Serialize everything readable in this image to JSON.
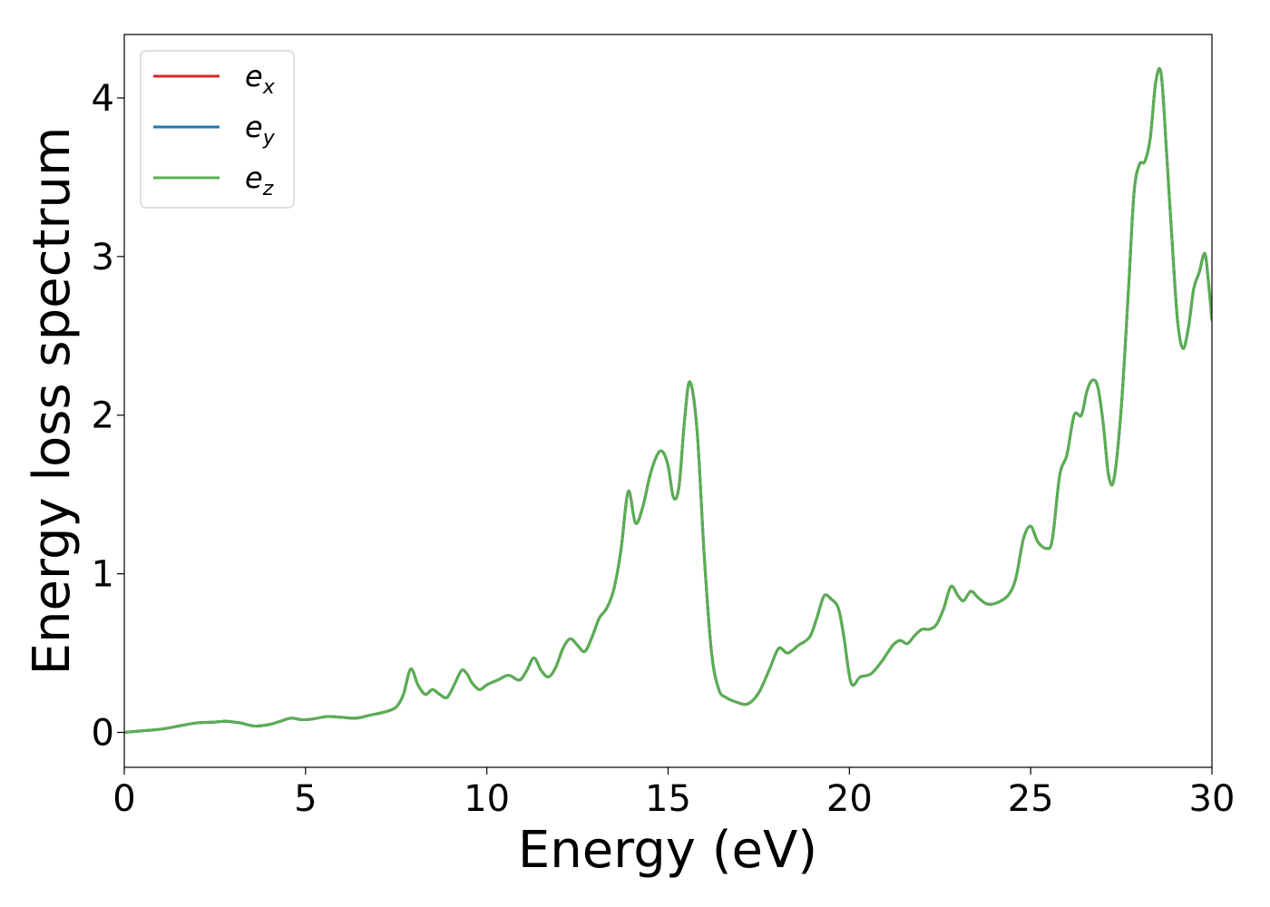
{
  "chart_data": {
    "type": "line",
    "xlabel": "Energy (eV)",
    "ylabel": "Energy loss spectrum",
    "xlim": [
      0,
      30
    ],
    "ylim": [
      -0.22,
      4.4
    ],
    "xticks": [
      0,
      5,
      10,
      15,
      20,
      25,
      30
    ],
    "yticks": [
      0,
      1,
      2,
      3,
      4
    ],
    "grid": false,
    "legend_position": "top-left",
    "colors": {
      "e_x": "#d62728",
      "e_y": "#1f77b4",
      "e_z": "#5aaf50"
    },
    "legend": [
      {
        "base": "e",
        "sub": "x"
      },
      {
        "base": "e",
        "sub": "y"
      },
      {
        "base": "e",
        "sub": "z"
      }
    ],
    "x": [
      0,
      0.5,
      1.0,
      1.5,
      2.0,
      2.5,
      2.8,
      3.2,
      3.6,
      4.0,
      4.3,
      4.6,
      4.9,
      5.2,
      5.6,
      6.0,
      6.4,
      6.8,
      7.2,
      7.5,
      7.7,
      7.9,
      8.1,
      8.3,
      8.5,
      8.7,
      8.9,
      9.1,
      9.3,
      9.45,
      9.6,
      9.8,
      10.0,
      10.3,
      10.6,
      10.9,
      11.1,
      11.3,
      11.5,
      11.7,
      11.9,
      12.1,
      12.3,
      12.5,
      12.7,
      12.9,
      13.1,
      13.3,
      13.5,
      13.7,
      13.9,
      14.1,
      14.3,
      14.5,
      14.7,
      14.85,
      15.0,
      15.15,
      15.3,
      15.45,
      15.6,
      15.8,
      16.0,
      16.2,
      16.4,
      16.6,
      16.9,
      17.2,
      17.5,
      17.8,
      18.05,
      18.3,
      18.6,
      18.9,
      19.1,
      19.3,
      19.5,
      19.7,
      19.85,
      20.05,
      20.3,
      20.6,
      20.9,
      21.2,
      21.4,
      21.6,
      21.8,
      22.0,
      22.2,
      22.4,
      22.6,
      22.8,
      23.0,
      23.15,
      23.35,
      23.55,
      23.8,
      24.1,
      24.4,
      24.6,
      24.8,
      25.0,
      25.2,
      25.45,
      25.6,
      25.8,
      26.0,
      26.2,
      26.4,
      26.55,
      26.7,
      26.85,
      27.0,
      27.15,
      27.3,
      27.5,
      27.7,
      27.85,
      28.0,
      28.15,
      28.3,
      28.45,
      28.6,
      28.75,
      28.9,
      29.05,
      29.2,
      29.35,
      29.5,
      29.65,
      29.8,
      29.9,
      30.0
    ],
    "series": [
      {
        "values": [
          0,
          0.01,
          0.02,
          0.04,
          0.06,
          0.065,
          0.07,
          0.06,
          0.04,
          0.05,
          0.07,
          0.09,
          0.08,
          0.085,
          0.1,
          0.095,
          0.09,
          0.11,
          0.13,
          0.16,
          0.24,
          0.4,
          0.3,
          0.24,
          0.27,
          0.24,
          0.22,
          0.3,
          0.39,
          0.37,
          0.31,
          0.27,
          0.3,
          0.33,
          0.36,
          0.33,
          0.39,
          0.47,
          0.39,
          0.35,
          0.41,
          0.53,
          0.59,
          0.55,
          0.51,
          0.6,
          0.72,
          0.78,
          0.9,
          1.15,
          1.52,
          1.32,
          1.42,
          1.62,
          1.75,
          1.77,
          1.68,
          1.48,
          1.55,
          1.96,
          2.21,
          1.9,
          1.1,
          0.5,
          0.27,
          0.22,
          0.19,
          0.18,
          0.25,
          0.4,
          0.53,
          0.5,
          0.55,
          0.6,
          0.72,
          0.86,
          0.84,
          0.78,
          0.6,
          0.31,
          0.35,
          0.37,
          0.45,
          0.55,
          0.58,
          0.56,
          0.61,
          0.65,
          0.65,
          0.68,
          0.78,
          0.92,
          0.86,
          0.83,
          0.89,
          0.85,
          0.81,
          0.82,
          0.87,
          0.98,
          1.22,
          1.3,
          1.2,
          1.16,
          1.22,
          1.62,
          1.75,
          2.0,
          2.0,
          2.15,
          2.22,
          2.18,
          1.95,
          1.62,
          1.6,
          2.05,
          2.8,
          3.4,
          3.58,
          3.6,
          3.75,
          4.1,
          4.15,
          3.65,
          3.1,
          2.6,
          2.42,
          2.55,
          2.8,
          2.9,
          3.02,
          2.85,
          2.6
        ]
      },
      {
        "values": [
          0,
          0.01,
          0.02,
          0.04,
          0.06,
          0.065,
          0.07,
          0.06,
          0.04,
          0.05,
          0.07,
          0.09,
          0.08,
          0.085,
          0.1,
          0.095,
          0.09,
          0.11,
          0.13,
          0.16,
          0.24,
          0.4,
          0.3,
          0.24,
          0.27,
          0.24,
          0.22,
          0.3,
          0.39,
          0.37,
          0.31,
          0.27,
          0.3,
          0.33,
          0.36,
          0.33,
          0.39,
          0.47,
          0.39,
          0.35,
          0.41,
          0.53,
          0.59,
          0.55,
          0.51,
          0.6,
          0.72,
          0.78,
          0.9,
          1.15,
          1.52,
          1.32,
          1.42,
          1.62,
          1.75,
          1.77,
          1.68,
          1.48,
          1.55,
          1.96,
          2.21,
          1.9,
          1.1,
          0.5,
          0.27,
          0.22,
          0.19,
          0.18,
          0.25,
          0.4,
          0.53,
          0.5,
          0.55,
          0.6,
          0.72,
          0.86,
          0.84,
          0.78,
          0.6,
          0.31,
          0.35,
          0.37,
          0.45,
          0.55,
          0.58,
          0.56,
          0.61,
          0.65,
          0.65,
          0.68,
          0.78,
          0.92,
          0.86,
          0.83,
          0.89,
          0.85,
          0.81,
          0.82,
          0.87,
          0.98,
          1.22,
          1.3,
          1.2,
          1.16,
          1.22,
          1.62,
          1.75,
          2.0,
          2.0,
          2.15,
          2.22,
          2.18,
          1.95,
          1.62,
          1.6,
          2.05,
          2.8,
          3.4,
          3.58,
          3.6,
          3.75,
          4.1,
          4.15,
          3.65,
          3.1,
          2.6,
          2.42,
          2.55,
          2.8,
          2.9,
          3.02,
          2.85,
          2.6
        ]
      },
      {
        "values": [
          0,
          0.01,
          0.02,
          0.04,
          0.06,
          0.065,
          0.07,
          0.06,
          0.04,
          0.05,
          0.07,
          0.09,
          0.08,
          0.085,
          0.1,
          0.095,
          0.09,
          0.11,
          0.13,
          0.16,
          0.24,
          0.4,
          0.3,
          0.24,
          0.27,
          0.24,
          0.22,
          0.3,
          0.39,
          0.37,
          0.31,
          0.27,
          0.3,
          0.33,
          0.36,
          0.33,
          0.39,
          0.47,
          0.39,
          0.35,
          0.41,
          0.53,
          0.59,
          0.55,
          0.51,
          0.6,
          0.72,
          0.78,
          0.9,
          1.15,
          1.52,
          1.32,
          1.42,
          1.62,
          1.75,
          1.77,
          1.68,
          1.48,
          1.55,
          1.96,
          2.21,
          1.9,
          1.1,
          0.5,
          0.27,
          0.22,
          0.19,
          0.18,
          0.25,
          0.4,
          0.53,
          0.5,
          0.55,
          0.6,
          0.72,
          0.86,
          0.84,
          0.78,
          0.6,
          0.31,
          0.35,
          0.37,
          0.45,
          0.55,
          0.58,
          0.56,
          0.61,
          0.65,
          0.65,
          0.68,
          0.78,
          0.92,
          0.86,
          0.83,
          0.89,
          0.85,
          0.81,
          0.82,
          0.87,
          0.98,
          1.22,
          1.3,
          1.2,
          1.16,
          1.22,
          1.62,
          1.75,
          2.0,
          2.0,
          2.15,
          2.22,
          2.18,
          1.95,
          1.62,
          1.6,
          2.05,
          2.8,
          3.4,
          3.58,
          3.6,
          3.75,
          4.1,
          4.15,
          3.65,
          3.1,
          2.6,
          2.42,
          2.55,
          2.8,
          2.9,
          3.02,
          2.85,
          2.6
        ]
      }
    ]
  }
}
